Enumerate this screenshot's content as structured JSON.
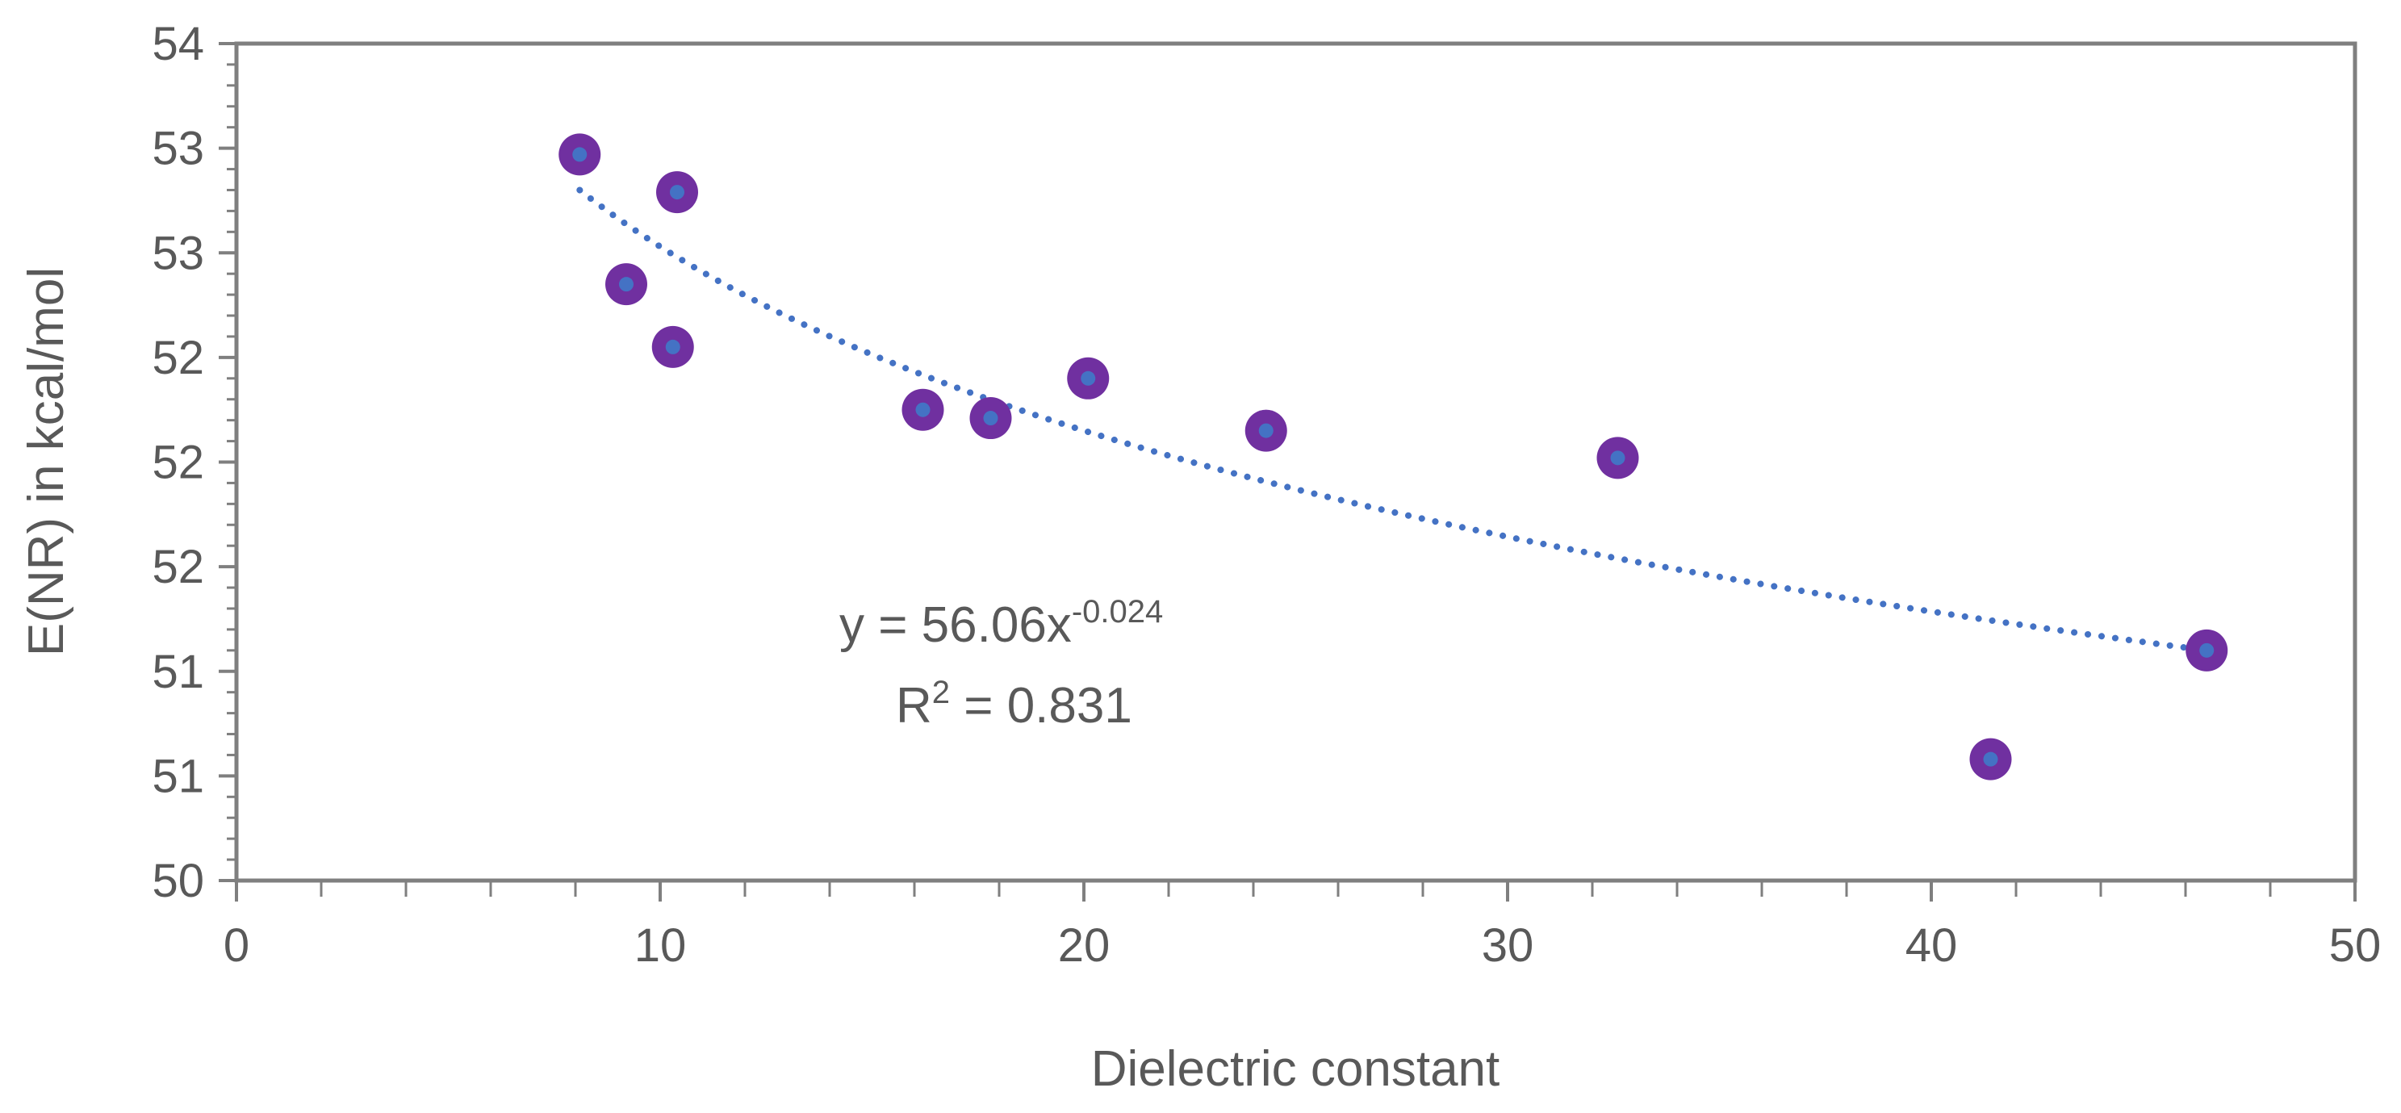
{
  "chart_data": {
    "type": "scatter",
    "title": "",
    "xlabel": "Dielectric constant",
    "ylabel": "E(NR) in kcal/mol",
    "xlim": [
      0,
      50
    ],
    "ylim": [
      50,
      54
    ],
    "x_ticks": [
      0,
      10,
      20,
      30,
      40,
      50
    ],
    "x_tick_labels": [
      "0",
      "10",
      "20",
      "30",
      "40",
      "50"
    ],
    "y_tick_labels": [
      "50",
      "51",
      "51",
      "52",
      "52",
      "52",
      "53",
      "53",
      "54"
    ],
    "grid": false,
    "series": [
      {
        "name": "E(NR)",
        "marker_color": "#7030A0",
        "center_color": "#4472C4",
        "points": [
          {
            "x": 8.1,
            "y": 53.47
          },
          {
            "x": 9.2,
            "y": 52.85
          },
          {
            "x": 10.3,
            "y": 52.55
          },
          {
            "x": 10.4,
            "y": 53.29
          },
          {
            "x": 16.2,
            "y": 52.25
          },
          {
            "x": 17.8,
            "y": 52.21
          },
          {
            "x": 20.1,
            "y": 52.4
          },
          {
            "x": 24.3,
            "y": 52.15
          },
          {
            "x": 32.6,
            "y": 52.02
          },
          {
            "x": 41.4,
            "y": 50.58
          },
          {
            "x": 46.5,
            "y": 51.1
          }
        ]
      }
    ],
    "trendline": {
      "type": "power",
      "a": 56.06,
      "b": -0.024,
      "x_range": [
        8.1,
        46.5
      ],
      "color": "#4472C4",
      "style": "dotted"
    },
    "annotations": {
      "equation_prefix": "y = 56.06x",
      "equation_exponent": "-0.024",
      "r2_prefix": "R",
      "r2_exponent": "2",
      "r2_suffix": " = 0.831"
    },
    "colors": {
      "axis": "#7f7f7f",
      "frame": "#7f7f7f",
      "text": "#595959"
    }
  }
}
